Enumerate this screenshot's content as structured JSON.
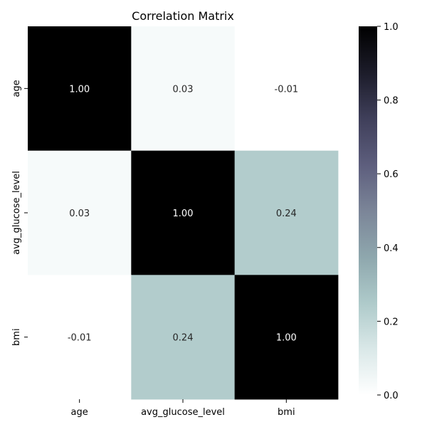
{
  "chart_data": {
    "type": "heatmap",
    "title": "Correlation Matrix",
    "xlabel": "",
    "ylabel": "",
    "x_categories": [
      "age",
      "avg_glucose_level",
      "bmi"
    ],
    "y_categories": [
      "age",
      "avg_glucose_level",
      "bmi"
    ],
    "values": [
      [
        1.0,
        0.03,
        -0.01
      ],
      [
        0.03,
        1.0,
        0.24
      ],
      [
        -0.01,
        0.24,
        1.0
      ]
    ],
    "value_labels": [
      [
        "1.00",
        "0.03",
        "-0.01"
      ],
      [
        "0.03",
        "1.00",
        "0.24"
      ],
      [
        "-0.01",
        "0.24",
        "1.00"
      ]
    ],
    "colorbar": {
      "min": 0.0,
      "max": 1.0,
      "ticks": [
        0.0,
        0.2,
        0.4,
        0.6,
        0.8,
        1.0
      ],
      "tick_labels": [
        "0.0",
        "0.2",
        "0.4",
        "0.6",
        "0.8",
        "1.0"
      ],
      "colormap": "bone_r"
    },
    "grid": false
  }
}
